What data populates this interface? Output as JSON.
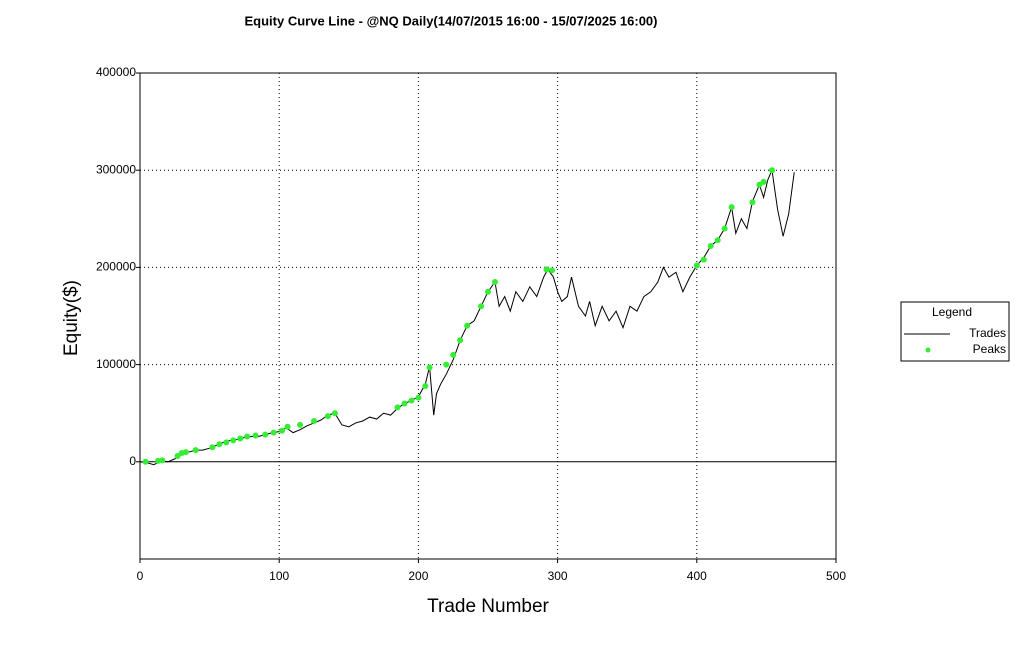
{
  "chart_data": {
    "type": "line",
    "title": "Equity Curve Line - @NQ Daily(14/07/2015 16:00 - 15/07/2025 16:00)",
    "x_label": "Trade Number",
    "y_label": "Equity($)",
    "legend_title": "Legend",
    "legend": "right",
    "xlim": [
      0,
      500
    ],
    "xticks": [
      0,
      100,
      200,
      300,
      400,
      500
    ],
    "ylim": [
      -100000,
      400000
    ],
    "yticks": [
      0,
      100000,
      200000,
      300000,
      400000
    ],
    "grid": true,
    "series": [
      {
        "name": "Trades",
        "color": "#000000",
        "x": [
          0,
          5,
          10,
          15,
          20,
          25,
          30,
          35,
          40,
          45,
          50,
          55,
          60,
          65,
          70,
          75,
          80,
          85,
          90,
          95,
          100,
          105,
          110,
          115,
          120,
          125,
          130,
          135,
          140,
          145,
          150,
          155,
          160,
          165,
          170,
          175,
          180,
          185,
          190,
          195,
          200,
          205,
          208,
          211,
          213,
          216,
          220,
          225,
          230,
          235,
          240,
          245,
          250,
          255,
          258,
          262,
          266,
          270,
          275,
          280,
          285,
          290,
          293,
          297,
          300,
          303,
          307,
          310,
          315,
          320,
          323,
          327,
          332,
          337,
          342,
          347,
          352,
          357,
          362,
          367,
          372,
          376,
          380,
          385,
          390,
          395,
          400,
          405,
          410,
          415,
          420,
          425,
          428,
          432,
          436,
          440,
          445,
          448,
          451,
          454,
          458,
          462,
          466,
          470
        ],
        "values": [
          0,
          -1000,
          -3000,
          1000,
          0,
          3000,
          8000,
          10000,
          12000,
          12000,
          14000,
          17000,
          20000,
          22000,
          23000,
          25000,
          26000,
          26000,
          28000,
          30000,
          31000,
          35000,
          30000,
          33000,
          37000,
          40000,
          43000,
          48000,
          50000,
          38000,
          36000,
          40000,
          42000,
          46000,
          44000,
          50000,
          48000,
          55000,
          60000,
          63000,
          67000,
          80000,
          98000,
          48000,
          70000,
          80000,
          90000,
          105000,
          125000,
          140000,
          145000,
          160000,
          175000,
          185000,
          160000,
          170000,
          155000,
          175000,
          165000,
          180000,
          170000,
          190000,
          198000,
          190000,
          175000,
          165000,
          170000,
          190000,
          160000,
          150000,
          165000,
          140000,
          160000,
          145000,
          155000,
          138000,
          160000,
          155000,
          170000,
          175000,
          185000,
          200000,
          190000,
          195000,
          175000,
          190000,
          202000,
          210000,
          222000,
          228000,
          240000,
          262000,
          235000,
          250000,
          240000,
          268000,
          285000,
          272000,
          290000,
          300000,
          260000,
          232000,
          255000,
          298000
        ]
      },
      {
        "name": "Peaks",
        "color": "#33ee33",
        "type": "scatter",
        "x": [
          4,
          13,
          16,
          27,
          30,
          33,
          40,
          52,
          57,
          62,
          67,
          72,
          77,
          83,
          90,
          96,
          102,
          106,
          115,
          125,
          135,
          140,
          185,
          190,
          195,
          200,
          205,
          208,
          220,
          225,
          230,
          235,
          245,
          250,
          255,
          292,
          296,
          400,
          405,
          410,
          415,
          420,
          425,
          440,
          445,
          448,
          454
        ],
        "values": [
          0,
          1000,
          1500,
          6000,
          9000,
          10000,
          12000,
          15000,
          18000,
          20000,
          22000,
          24000,
          26000,
          27000,
          28000,
          30000,
          32000,
          36000,
          38000,
          42000,
          47000,
          50000,
          56000,
          60000,
          63000,
          66000,
          78000,
          97000,
          100000,
          110000,
          125000,
          140000,
          160000,
          175000,
          185000,
          198000,
          197000,
          202000,
          208000,
          222000,
          228000,
          240000,
          262000,
          267000,
          285000,
          288000,
          300000
        ]
      }
    ]
  }
}
